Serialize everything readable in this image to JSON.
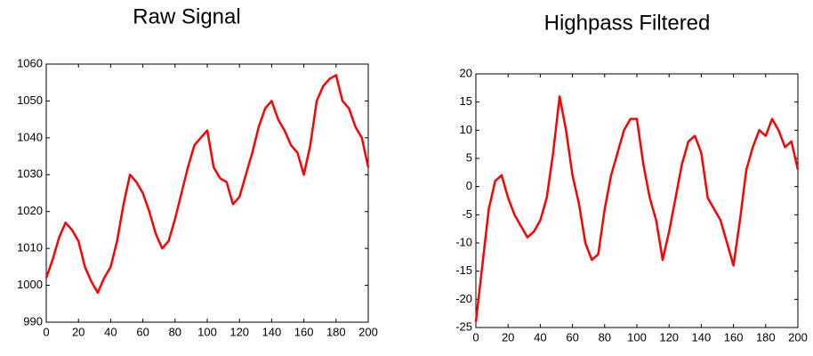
{
  "chart_data": [
    {
      "type": "line",
      "title": "Raw Signal",
      "color": "#ff0000",
      "x": [
        0,
        4,
        8,
        12,
        16,
        20,
        24,
        28,
        32,
        36,
        40,
        44,
        48,
        52,
        56,
        60,
        64,
        68,
        72,
        76,
        80,
        84,
        88,
        92,
        96,
        100,
        104,
        108,
        112,
        116,
        120,
        124,
        128,
        132,
        136,
        140,
        144,
        148,
        152,
        156,
        160,
        164,
        168,
        172,
        176,
        180,
        184,
        188,
        192,
        196,
        200
      ],
      "values": [
        1002,
        1007,
        1013,
        1017,
        1015,
        1012,
        1005,
        1001,
        998,
        1002,
        1005,
        1012,
        1022,
        1030,
        1028,
        1025,
        1020,
        1014,
        1010,
        1012,
        1018,
        1025,
        1032,
        1038,
        1040,
        1042,
        1032,
        1029,
        1028,
        1022,
        1024,
        1030,
        1036,
        1043,
        1048,
        1050,
        1045,
        1042,
        1038,
        1036,
        1030,
        1038,
        1050,
        1054,
        1056,
        1057,
        1050,
        1048,
        1043,
        1040,
        1032
      ],
      "xlim": [
        0,
        200
      ],
      "xticks": [
        0,
        20,
        40,
        60,
        80,
        100,
        120,
        140,
        160,
        180,
        200
      ],
      "ylim": [
        990,
        1060
      ],
      "yticks": [
        990,
        1000,
        1010,
        1020,
        1030,
        1040,
        1050,
        1060
      ]
    },
    {
      "type": "line",
      "title": "Highpass Filtered",
      "color": "#ff0000",
      "x": [
        0,
        4,
        8,
        12,
        16,
        20,
        24,
        28,
        32,
        36,
        40,
        44,
        48,
        52,
        56,
        60,
        64,
        68,
        72,
        76,
        80,
        84,
        88,
        92,
        96,
        100,
        104,
        108,
        112,
        116,
        120,
        124,
        128,
        132,
        136,
        140,
        144,
        148,
        152,
        156,
        160,
        164,
        168,
        172,
        176,
        180,
        184,
        188,
        192,
        196,
        200
      ],
      "values": [
        -24,
        -14,
        -4,
        1,
        2,
        -2,
        -5,
        -7,
        -9,
        -8,
        -6,
        -2,
        6,
        16,
        10,
        2,
        -3,
        -10,
        -13,
        -12,
        -4,
        2,
        6,
        10,
        12,
        12,
        4,
        -2,
        -6,
        -13,
        -8,
        -2,
        4,
        8,
        9,
        6,
        -2,
        -4,
        -6,
        -10,
        -14,
        -6,
        3,
        7,
        10,
        9,
        12,
        10,
        7,
        8,
        3
      ],
      "xlim": [
        0,
        200
      ],
      "xticks": [
        0,
        20,
        40,
        60,
        80,
        100,
        120,
        140,
        160,
        180,
        200
      ],
      "ylim": [
        -25,
        20
      ],
      "yticks": [
        -25,
        -20,
        -15,
        -10,
        -5,
        0,
        5,
        10,
        15,
        20
      ]
    }
  ]
}
